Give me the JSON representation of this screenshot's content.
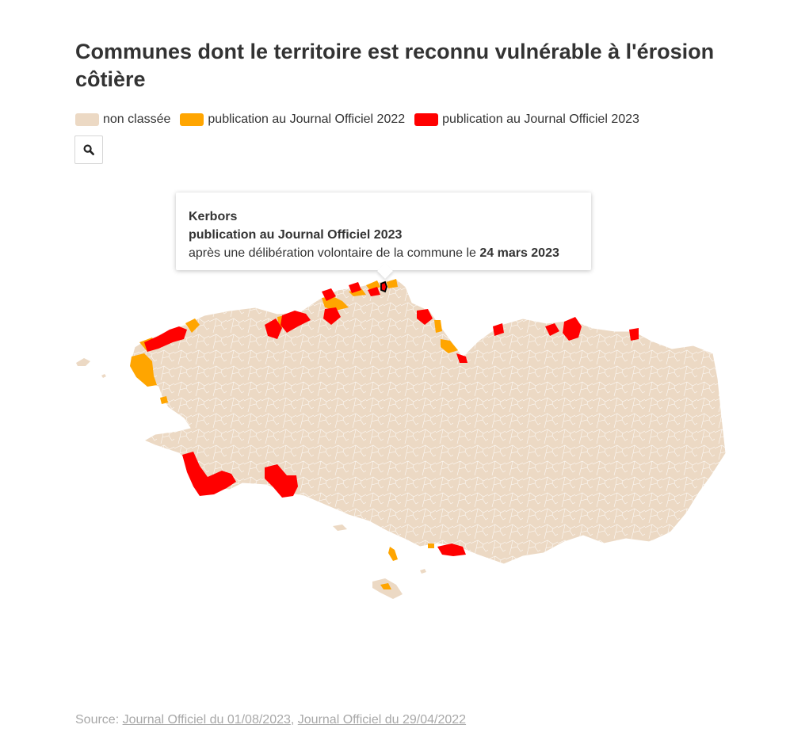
{
  "title": "Communes dont le territoire est reconnu vulnérable à l'érosion côtière",
  "colors": {
    "non_classee": "#ecd9c4",
    "jo_2022": "#ffa500",
    "jo_2023": "#ff0000",
    "border": "#ffffff",
    "selected_outline": "#000000"
  },
  "legend": [
    {
      "label": "non classée",
      "color": "#ecd9c4"
    },
    {
      "label": "publication au Journal Officiel 2022",
      "color": "#ffa500"
    },
    {
      "label": "publication au Journal Officiel 2023",
      "color": "#ff0000"
    }
  ],
  "search": {
    "icon": "search-icon"
  },
  "tooltip": {
    "commune": "Kerbors",
    "status": "publication au Journal Officiel 2023",
    "detail_prefix": "après une délibération volontaire de la commune le",
    "date": "24 mars 2023"
  },
  "source": {
    "prefix": "Source:",
    "links": [
      "Journal Officiel du 01/08/2023",
      "Journal Officiel du 29/04/2022"
    ],
    "separator": ", "
  }
}
